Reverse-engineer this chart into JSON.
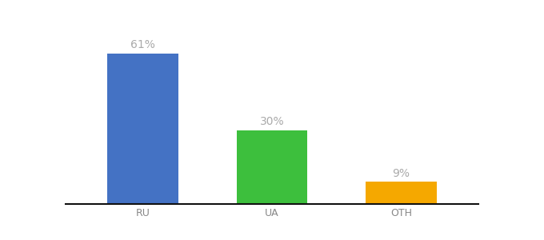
{
  "categories": [
    "RU",
    "UA",
    "OTH"
  ],
  "values": [
    61,
    30,
    9
  ],
  "bar_colors": [
    "#4472c4",
    "#3dbf3d",
    "#f5a800"
  ],
  "labels": [
    "61%",
    "30%",
    "9%"
  ],
  "background_color": "#ffffff",
  "label_color": "#aaaaaa",
  "label_fontsize": 10,
  "tick_fontsize": 9,
  "ylim": [
    0,
    75
  ],
  "bar_width": 0.55
}
